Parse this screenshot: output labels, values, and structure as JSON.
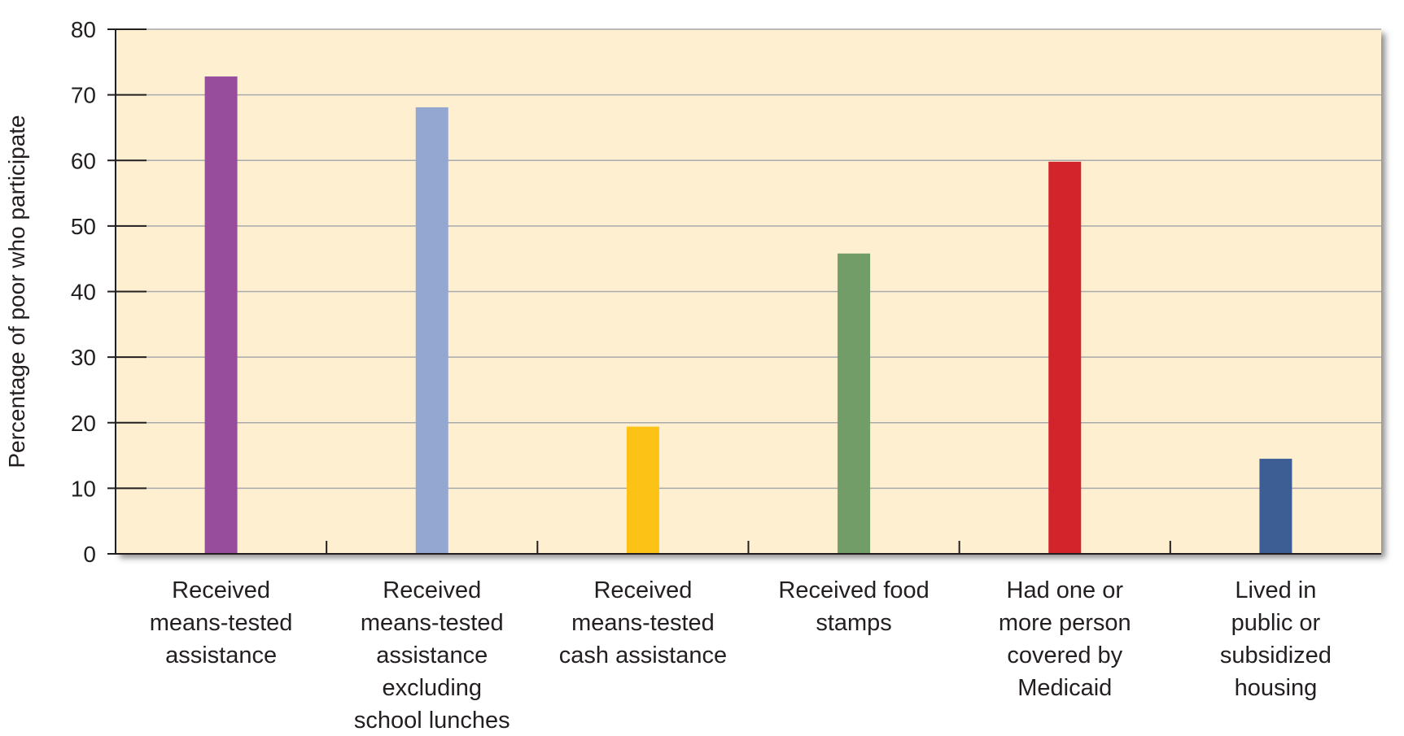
{
  "chart_data": {
    "type": "bar",
    "title": "",
    "xlabel": "",
    "ylabel": "Percentage of poor who participate",
    "ylim": [
      0,
      80
    ],
    "yticks": [
      0,
      10,
      20,
      30,
      40,
      50,
      60,
      70,
      80
    ],
    "grid": true,
    "legend": "none",
    "colors": {
      "plot_background": "#fdefd0",
      "gridline": "#a7a9ac",
      "axis": "#231f20"
    },
    "categories": [
      [
        "Received",
        "means-tested",
        "assistance"
      ],
      [
        "Received",
        "means-tested",
        "assistance",
        "excluding",
        "school lunches"
      ],
      [
        "Received",
        "means-tested",
        "cash assistance"
      ],
      [
        "Received food",
        "stamps"
      ],
      [
        "Had one or",
        "more person",
        "covered by",
        "Medicaid"
      ],
      [
        "Lived in",
        "public or",
        "subsidized",
        "housing"
      ]
    ],
    "values": [
      72.8,
      68.1,
      19.4,
      45.8,
      59.8,
      14.5
    ],
    "bar_colors": [
      "#974d9c",
      "#93a7d1",
      "#fcc316",
      "#729d68",
      "#d3232b",
      "#3c5e95"
    ]
  }
}
